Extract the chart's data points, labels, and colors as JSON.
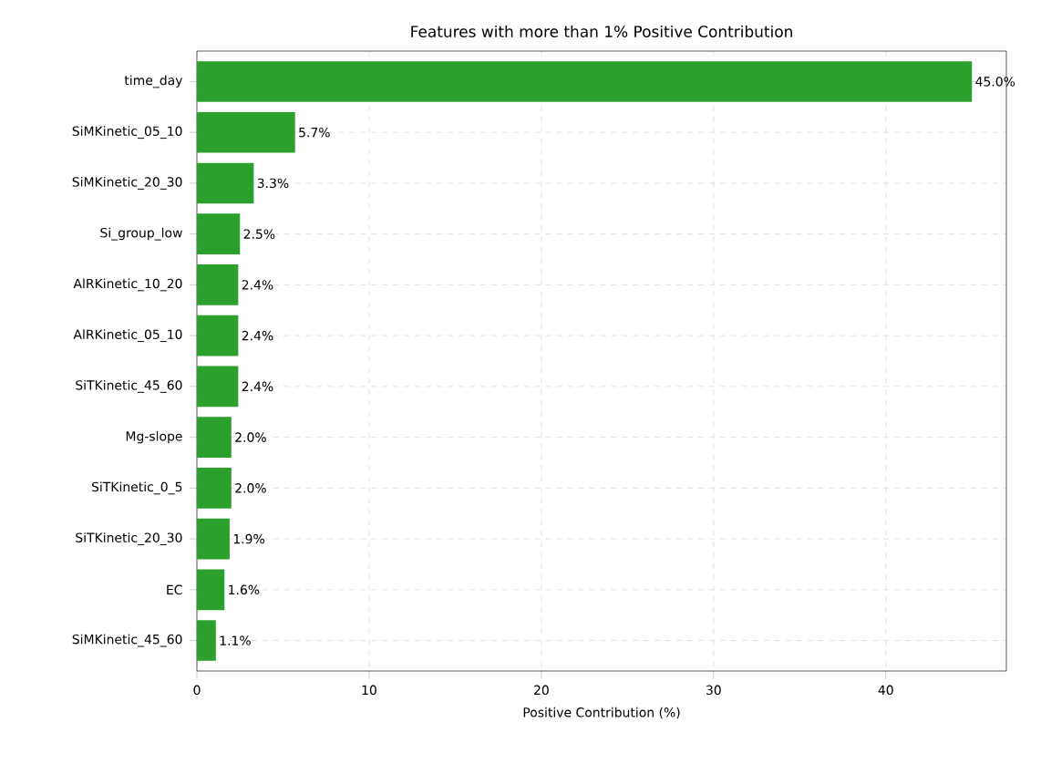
{
  "chart_data": {
    "type": "bar",
    "orientation": "horizontal",
    "title": "Features with more than 1% Positive Contribution",
    "xlabel": "Positive Contribution (%)",
    "categories": [
      "time_day",
      "SiMKinetic_05_10",
      "SiMKinetic_20_30",
      "Si_group_low",
      "AlRKinetic_10_20",
      "AlRKinetic_05_10",
      "SiTKinetic_45_60",
      "Mg-slope",
      "SiTKinetic_0_5",
      "SiTKinetic_20_30",
      "EC",
      "SiMKinetic_45_60"
    ],
    "values": [
      45.0,
      5.7,
      3.3,
      2.5,
      2.4,
      2.4,
      2.4,
      2.0,
      2.0,
      1.9,
      1.6,
      1.1
    ],
    "value_labels": [
      "45.0%",
      "5.7%",
      "3.3%",
      "2.5%",
      "2.4%",
      "2.4%",
      "2.4%",
      "2.0%",
      "2.0%",
      "1.9%",
      "1.6%",
      "1.1%"
    ],
    "color": "#2ca02c",
    "xlim": [
      0,
      47.0
    ],
    "xticks": [
      0,
      10,
      20,
      30,
      40
    ],
    "grid": true
  }
}
